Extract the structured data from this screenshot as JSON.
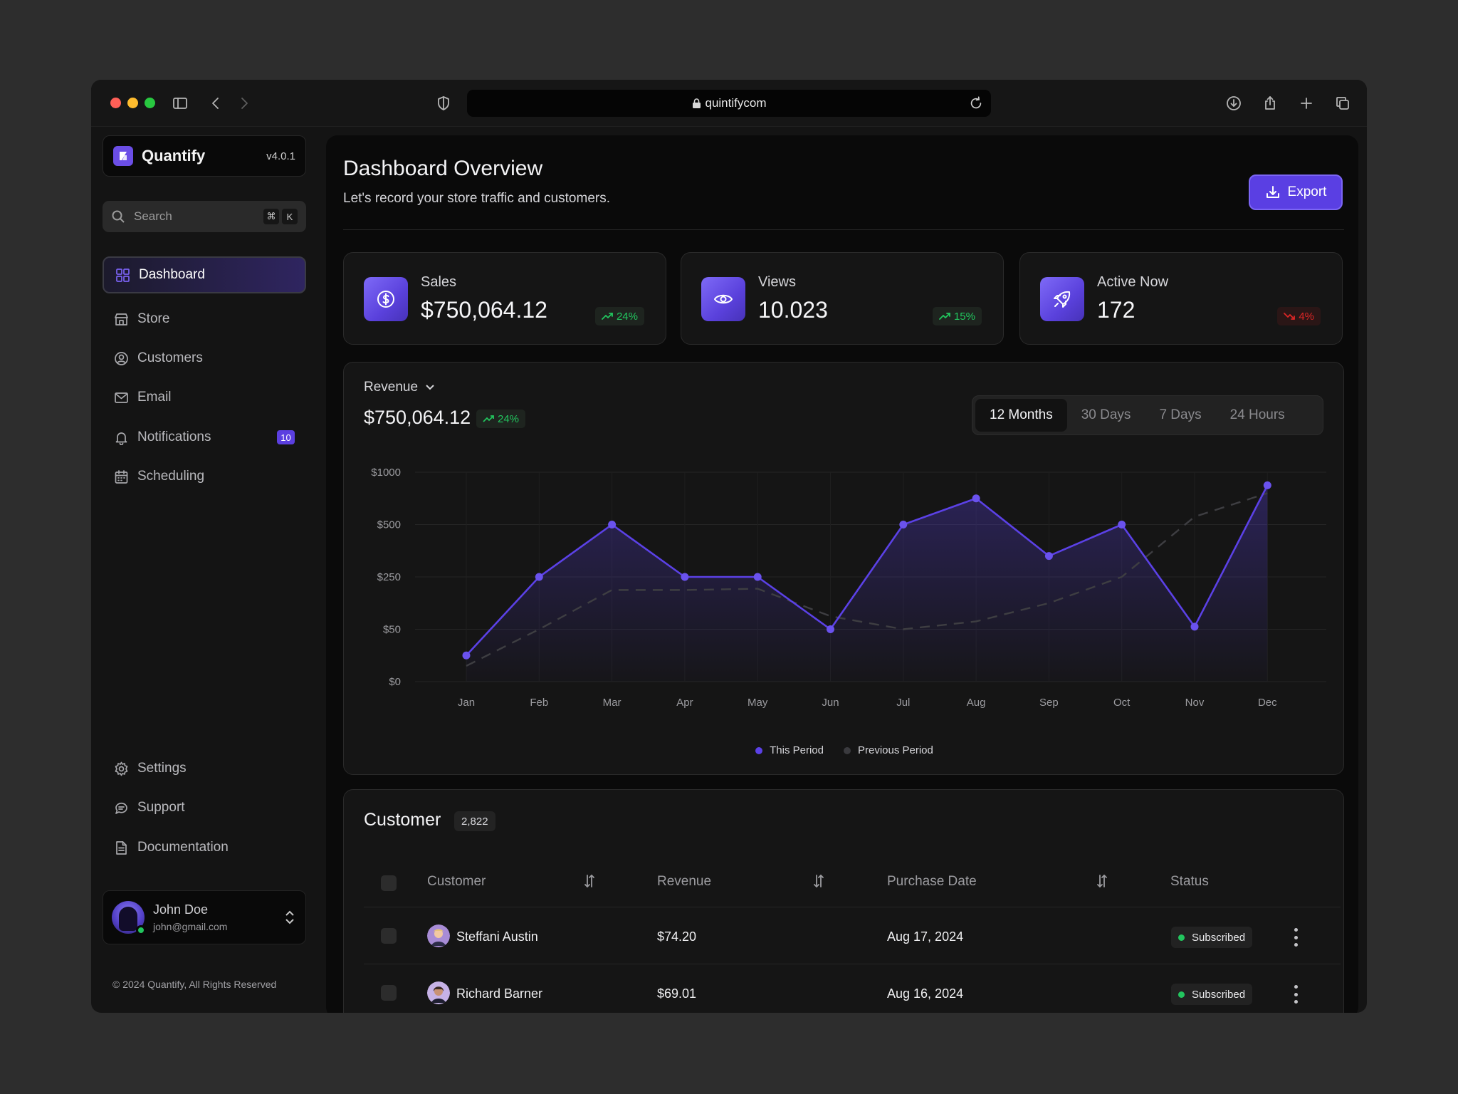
{
  "browser": {
    "url": "quintifycom"
  },
  "sidebar": {
    "brand_name": "Quantify",
    "version": "v4.0.1",
    "search": {
      "placeholder": "Search",
      "key1": "⌘",
      "key2": "K"
    },
    "items": [
      {
        "label": "Dashboard",
        "icon": "grid-icon",
        "active": true
      },
      {
        "label": "Store",
        "icon": "store-icon"
      },
      {
        "label": "Customers",
        "icon": "user-circle-icon"
      },
      {
        "label": "Email",
        "icon": "mail-icon"
      },
      {
        "label": "Notifications",
        "icon": "bell-icon",
        "badge": "10"
      },
      {
        "label": "Scheduling",
        "icon": "calendar-icon"
      }
    ],
    "bottom_items": [
      {
        "label": "Settings",
        "icon": "gear-icon"
      },
      {
        "label": "Support",
        "icon": "chat-icon"
      },
      {
        "label": "Documentation",
        "icon": "document-icon"
      }
    ],
    "user": {
      "name": "John Doe",
      "email": "john@gmail.com"
    },
    "copyright": "© 2024 Quantify, All Rights Reserved"
  },
  "header": {
    "title": "Dashboard Overview",
    "subtitle": "Let's record your store traffic and customers.",
    "export_label": "Export"
  },
  "stats": [
    {
      "label": "Sales",
      "value": "$750,064.12",
      "trend": "24%",
      "direction": "up",
      "icon": "dollar-icon"
    },
    {
      "label": "Views",
      "value": "10.023",
      "trend": "15%",
      "direction": "up",
      "icon": "eye-icon"
    },
    {
      "label": "Active Now",
      "value": "172",
      "trend": "4%",
      "direction": "down",
      "icon": "rocket-icon"
    }
  ],
  "revenue": {
    "label": "Revenue",
    "value": "$750,064.12",
    "trend": "24%",
    "ranges": [
      "12 Months",
      "30 Days",
      "7 Days",
      "24 Hours"
    ],
    "active_range": "12 Months"
  },
  "chart_data": {
    "type": "area",
    "categories": [
      "Jan",
      "Feb",
      "Mar",
      "Apr",
      "May",
      "Jun",
      "Jul",
      "Aug",
      "Sep",
      "Oct",
      "Nov",
      "Dec"
    ],
    "y_ticks": [
      "$1000",
      "$500",
      "$250",
      "$50",
      "$0"
    ],
    "y_tick_values": [
      1000,
      500,
      250,
      50,
      0
    ],
    "series": [
      {
        "name": "This Period",
        "color": "#5b41e6",
        "style": "solid",
        "filled": true,
        "values": [
          25,
          250,
          500,
          250,
          250,
          50,
          500,
          750,
          350,
          500,
          60,
          875
        ]
      },
      {
        "name": "Previous Period",
        "color": "#3a3a3e",
        "style": "dashed",
        "filled": false,
        "values": [
          15,
          50,
          200,
          200,
          205,
          100,
          50,
          80,
          150,
          250,
          575,
          800
        ]
      }
    ],
    "legend_position": "bottom-center",
    "grid": true
  },
  "customers": {
    "title": "Customer",
    "count": "2,822",
    "columns": [
      "Customer",
      "Revenue",
      "Purchase Date",
      "Status"
    ],
    "rows": [
      {
        "name": "Steffani Austin",
        "revenue": "$74.20",
        "date": "Aug 17, 2024",
        "status": "Subscribed"
      },
      {
        "name": "Richard Barner",
        "revenue": "$69.01",
        "date": "Aug 16, 2024",
        "status": "Subscribed"
      }
    ]
  },
  "colors": {
    "accent": "#5b41e6",
    "positive": "#22c55e",
    "negative": "#dc2626",
    "background": "#0a0a0a"
  }
}
